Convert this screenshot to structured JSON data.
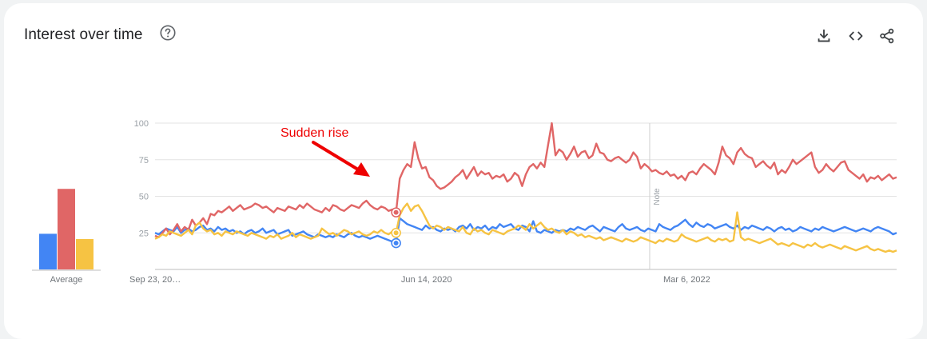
{
  "header": {
    "title": "Interest over time",
    "help_icon": "help-circle-icon",
    "actions": [
      "download-icon",
      "embed-code-icon",
      "share-icon"
    ]
  },
  "colors": {
    "blue": "#4285f4",
    "red": "#e06666",
    "yellow": "#f6c343",
    "annotation": "#ee0000"
  },
  "chart_data": {
    "type": "line",
    "title": "Interest over time",
    "ylim": [
      0,
      100
    ],
    "y_ticks": [
      100,
      75,
      50,
      25
    ],
    "x_tick_labels": [
      {
        "label": "Sep 23, 20…",
        "at": 0
      },
      {
        "label": "Jun 14, 2020",
        "at": 0.366
      },
      {
        "label": "Mar 6, 2022",
        "at": 0.717
      }
    ],
    "note_label": "Note",
    "note_at": 0.667,
    "annotation": {
      "text": "Sudden rise",
      "at": 0.285
    },
    "average": {
      "label": "Average",
      "values": [
        {
          "series": 0,
          "value": 27
        },
        {
          "series": 1,
          "value": 61
        },
        {
          "series": 2,
          "value": 23
        }
      ]
    },
    "series": [
      {
        "values": [
          25,
          24,
          26,
          28,
          27,
          26,
          29,
          25,
          27,
          28,
          26,
          27,
          29,
          30,
          27,
          28,
          26,
          29,
          27,
          28,
          26,
          27,
          25,
          26,
          24,
          26,
          27,
          25,
          26,
          28,
          25,
          26,
          27,
          24,
          25,
          26,
          27,
          23,
          24,
          25,
          26,
          24,
          23,
          22,
          24,
          23,
          22,
          23,
          22,
          24,
          23,
          22,
          24,
          25,
          23,
          22,
          23,
          22,
          21,
          22,
          23,
          22,
          21,
          20,
          19,
          18,
          35,
          33,
          31,
          30,
          29,
          28,
          27,
          30,
          28,
          29,
          27,
          26,
          28,
          27,
          28,
          26,
          29,
          30,
          28,
          31,
          27,
          29,
          28,
          30,
          27,
          29,
          28,
          31,
          29,
          30,
          31,
          28,
          27,
          30,
          29,
          26,
          33,
          26,
          25,
          27,
          26,
          25,
          27,
          26,
          27,
          26,
          28,
          27,
          29,
          28,
          27,
          29,
          30,
          28,
          26,
          29,
          28,
          27,
          26,
          29,
          31,
          28,
          27,
          28,
          29,
          27,
          26,
          28,
          27,
          26,
          31,
          29,
          28,
          27,
          29,
          30,
          32,
          34,
          31,
          29,
          32,
          30,
          29,
          31,
          30,
          28,
          29,
          30,
          31,
          29,
          28,
          30,
          27,
          29,
          28,
          30,
          29,
          28,
          27,
          29,
          28,
          26,
          28,
          29,
          27,
          28,
          26,
          27,
          29,
          28,
          27,
          26,
          28,
          27,
          29,
          28,
          27,
          26,
          27,
          28,
          29,
          28,
          27,
          26,
          27,
          28,
          27,
          26,
          28,
          29,
          28,
          27,
          26,
          24,
          25
        ]
      },
      {
        "values": [
          23,
          22,
          25,
          28,
          24,
          27,
          31,
          26,
          29,
          27,
          34,
          30,
          32,
          35,
          31,
          38,
          37,
          40,
          39,
          41,
          43,
          40,
          42,
          44,
          41,
          42,
          43,
          45,
          44,
          42,
          43,
          41,
          39,
          42,
          41,
          40,
          43,
          42,
          41,
          44,
          42,
          45,
          43,
          41,
          40,
          39,
          42,
          40,
          44,
          43,
          41,
          40,
          42,
          44,
          43,
          42,
          45,
          47,
          44,
          42,
          41,
          43,
          42,
          40,
          41,
          39,
          62,
          68,
          72,
          70,
          87,
          76,
          69,
          70,
          63,
          61,
          57,
          55,
          56,
          58,
          60,
          63,
          65,
          68,
          62,
          66,
          70,
          64,
          67,
          65,
          66,
          62,
          64,
          63,
          65,
          60,
          62,
          66,
          64,
          57,
          65,
          70,
          72,
          69,
          73,
          70,
          85,
          100,
          78,
          82,
          80,
          75,
          79,
          84,
          77,
          80,
          81,
          76,
          78,
          86,
          80,
          79,
          75,
          74,
          76,
          77,
          75,
          73,
          75,
          80,
          77,
          69,
          72,
          70,
          67,
          68,
          66,
          65,
          67,
          64,
          65,
          62,
          64,
          61,
          66,
          67,
          65,
          69,
          72,
          70,
          68,
          65,
          73,
          84,
          78,
          76,
          72,
          80,
          83,
          79,
          77,
          76,
          70,
          72,
          74,
          71,
          69,
          73,
          65,
          68,
          66,
          70,
          75,
          72,
          74,
          76,
          78,
          80,
          70,
          66,
          68,
          72,
          69,
          67,
          70,
          73,
          74,
          68,
          66,
          64,
          62,
          65,
          60,
          63,
          62,
          64,
          61,
          63,
          65,
          62,
          63
        ]
      },
      {
        "values": [
          21,
          22,
          24,
          23,
          26,
          25,
          24,
          23,
          25,
          27,
          24,
          30,
          32,
          28,
          26,
          27,
          24,
          25,
          23,
          26,
          25,
          24,
          26,
          25,
          24,
          23,
          25,
          24,
          23,
          22,
          21,
          23,
          22,
          24,
          21,
          22,
          23,
          25,
          22,
          24,
          23,
          22,
          21,
          22,
          23,
          28,
          26,
          24,
          25,
          23,
          25,
          27,
          26,
          24,
          25,
          26,
          24,
          23,
          24,
          26,
          25,
          27,
          25,
          24,
          26,
          25,
          37,
          42,
          45,
          40,
          43,
          44,
          40,
          35,
          30,
          28,
          30,
          29,
          27,
          29,
          28,
          27,
          26,
          29,
          25,
          24,
          28,
          26,
          27,
          25,
          24,
          27,
          26,
          25,
          24,
          26,
          27,
          28,
          30,
          29,
          27,
          31,
          28,
          30,
          32,
          29,
          27,
          28,
          26,
          25,
          27,
          24,
          26,
          25,
          23,
          24,
          22,
          23,
          22,
          21,
          22,
          20,
          21,
          22,
          21,
          20,
          19,
          21,
          20,
          19,
          20,
          22,
          21,
          20,
          19,
          18,
          20,
          19,
          21,
          20,
          19,
          20,
          24,
          22,
          21,
          20,
          19,
          20,
          21,
          22,
          20,
          19,
          21,
          20,
          21,
          19,
          20,
          39,
          22,
          20,
          21,
          20,
          19,
          18,
          19,
          20,
          21,
          19,
          17,
          18,
          17,
          16,
          18,
          17,
          16,
          15,
          17,
          16,
          18,
          16,
          15,
          16,
          17,
          16,
          15,
          14,
          16,
          15,
          14,
          13,
          14,
          15,
          16,
          14,
          13,
          14,
          13,
          12,
          13,
          12,
          13
        ]
      }
    ]
  }
}
